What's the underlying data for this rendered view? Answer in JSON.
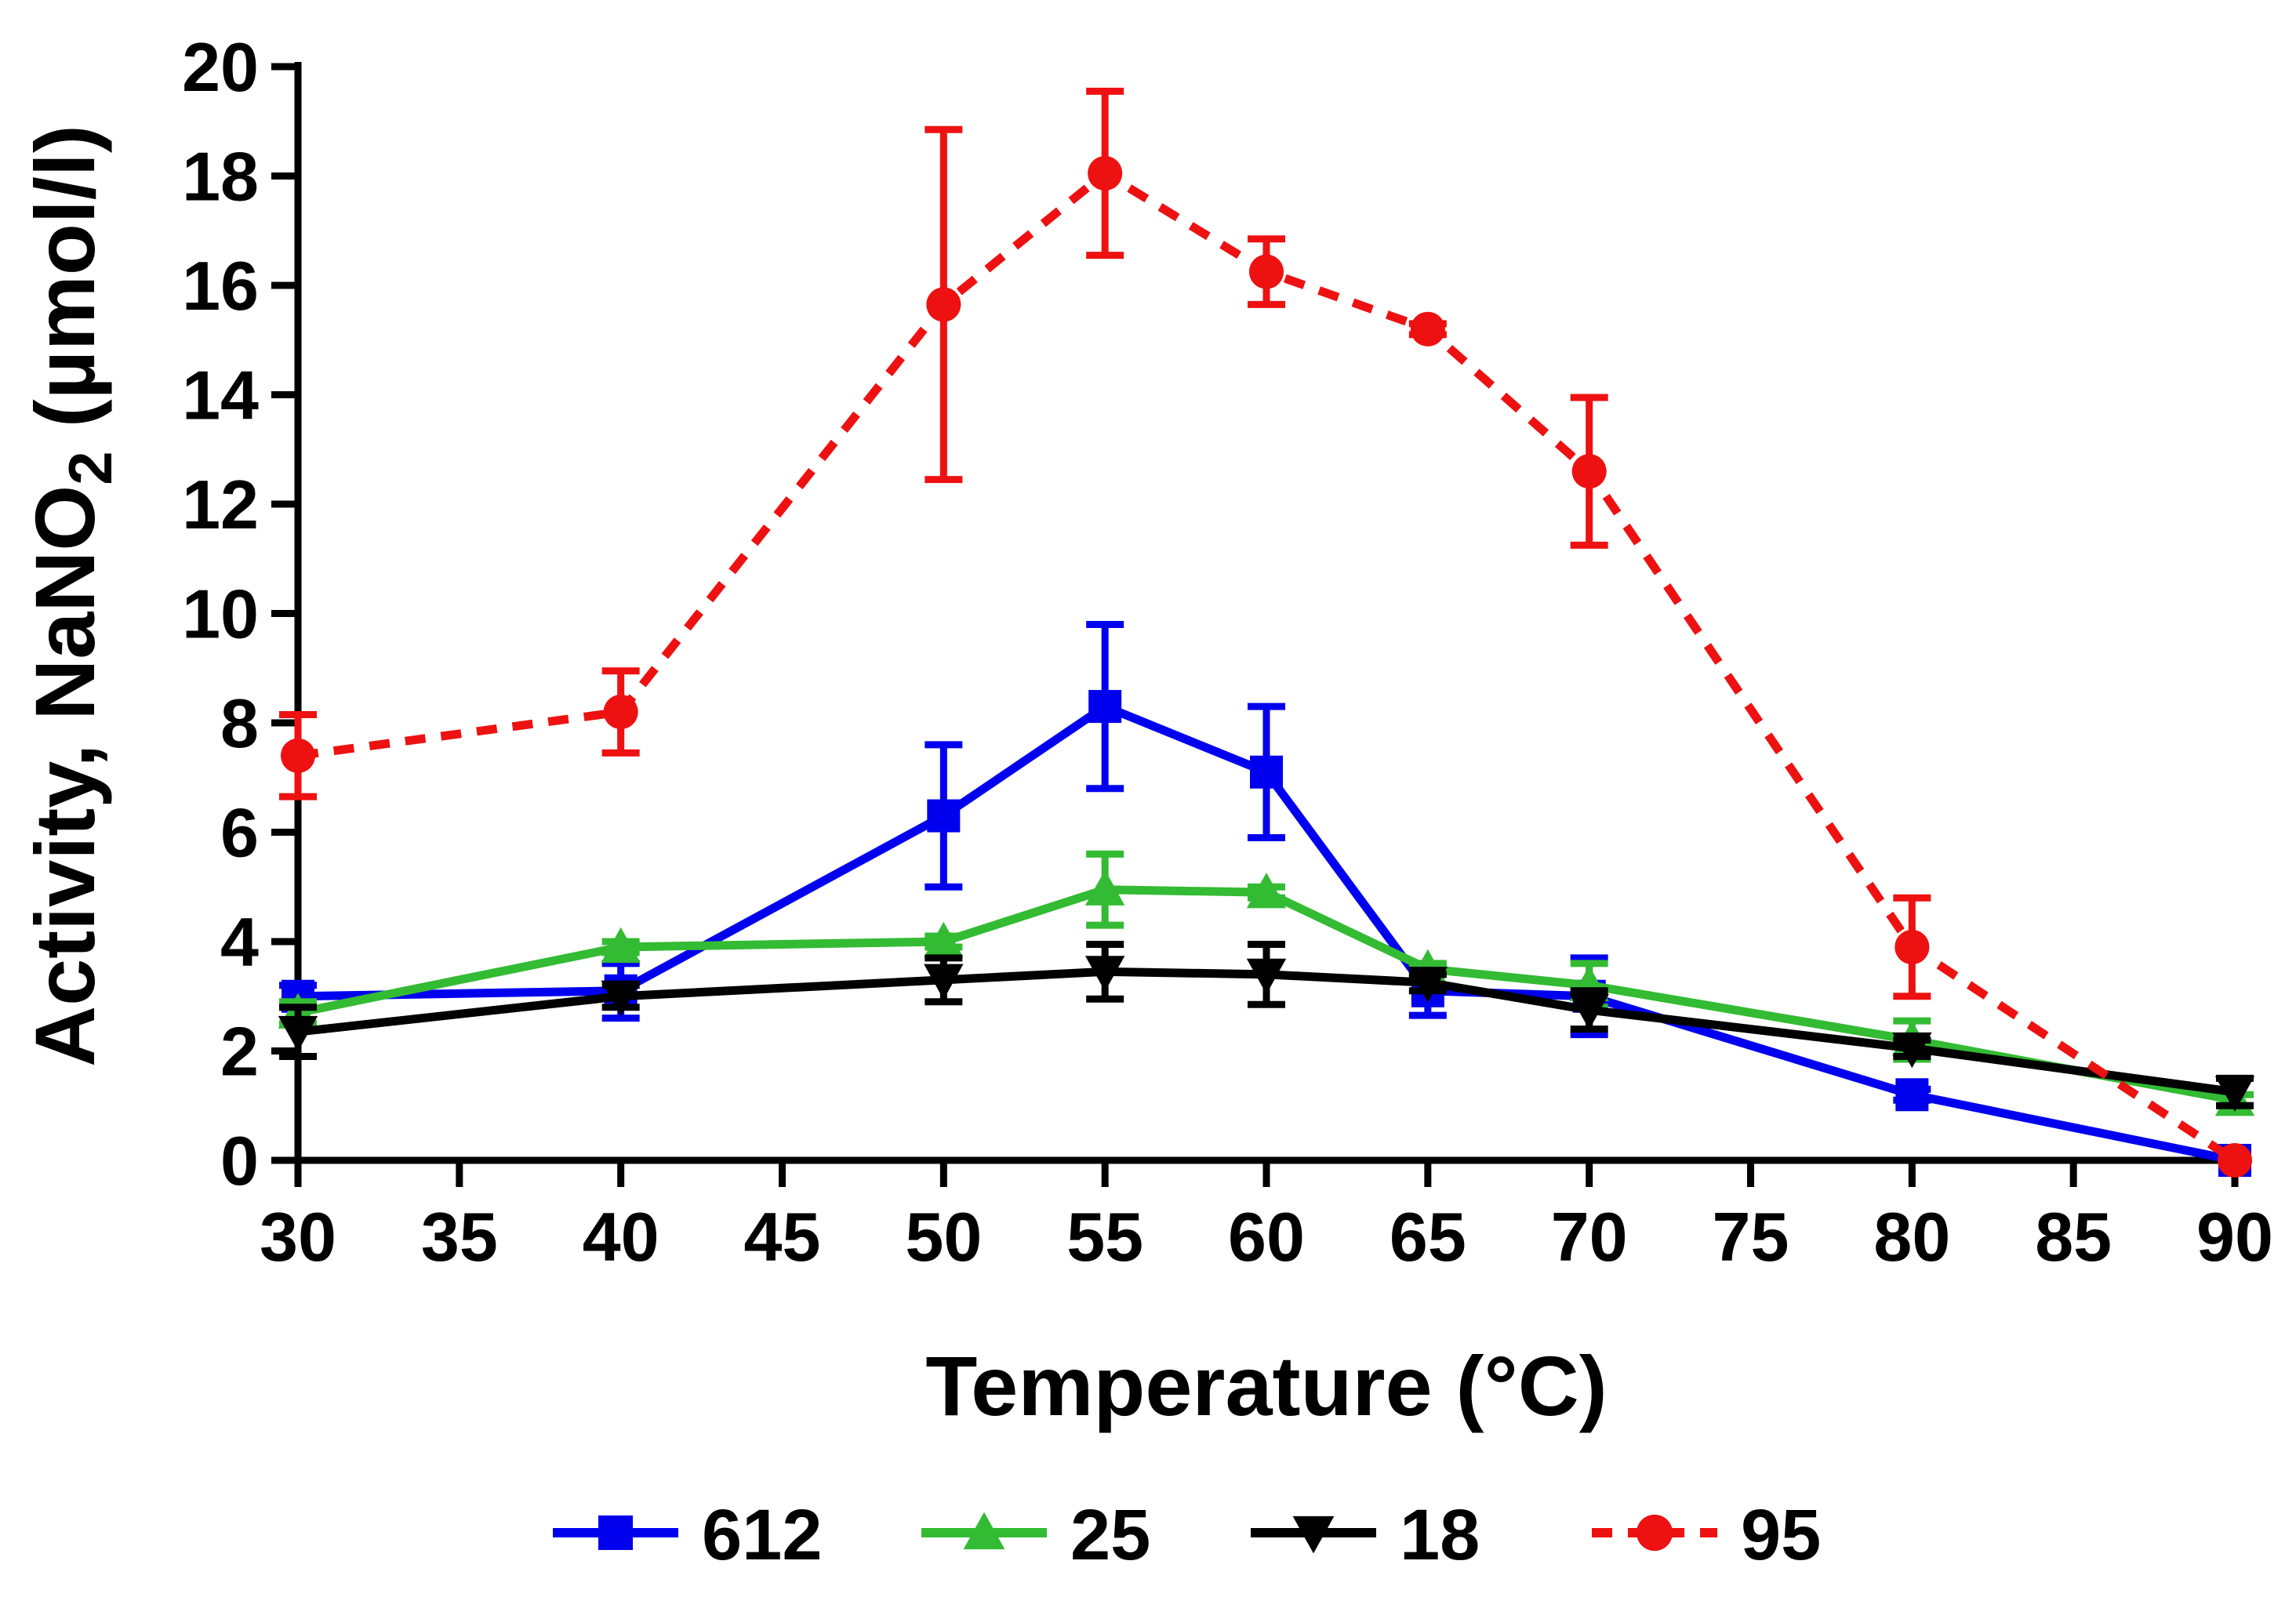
{
  "chart_data": {
    "type": "line",
    "xlabel": "Temperature (°C)",
    "ylabel_prefix": "Activity, NaNO",
    "ylabel_subscript": "2",
    "ylabel_suffix": " (µmol/l)",
    "xlim": [
      30,
      90
    ],
    "ylim": [
      0,
      20
    ],
    "xticks": [
      30,
      35,
      40,
      45,
      50,
      55,
      60,
      65,
      70,
      75,
      80,
      85,
      90
    ],
    "yticks": [
      0,
      2,
      4,
      6,
      8,
      10,
      12,
      14,
      16,
      18,
      20
    ],
    "grid": false,
    "legend_position": "bottom",
    "series": [
      {
        "name": "612",
        "color": "#0000ee",
        "marker": "square",
        "dashed": false,
        "x": [
          30,
          40,
          50,
          55,
          60,
          65,
          70,
          80,
          90
        ],
        "y": [
          3.0,
          3.1,
          6.3,
          8.3,
          7.1,
          3.1,
          3.0,
          1.2,
          0.0
        ],
        "err": [
          0.2,
          0.5,
          1.3,
          1.5,
          1.2,
          0.45,
          0.7,
          0.1,
          0.05
        ]
      },
      {
        "name": "25",
        "color": "#33bb33",
        "marker": "triangle-up",
        "dashed": false,
        "x": [
          30,
          40,
          50,
          55,
          60,
          65,
          70,
          80,
          90
        ],
        "y": [
          2.7,
          3.9,
          4.0,
          4.95,
          4.9,
          3.5,
          3.2,
          2.2,
          1.1
        ],
        "err": [
          0.2,
          0.1,
          0.1,
          0.65,
          0.1,
          0.1,
          0.4,
          0.35,
          0.1
        ]
      },
      {
        "name": "18",
        "color": "#000000",
        "marker": "triangle-down",
        "dashed": false,
        "x": [
          30,
          40,
          50,
          55,
          60,
          65,
          70,
          80,
          90
        ],
        "y": [
          2.35,
          3.0,
          3.3,
          3.45,
          3.4,
          3.25,
          2.75,
          2.05,
          1.25
        ],
        "err": [
          0.45,
          0.2,
          0.4,
          0.5,
          0.55,
          0.15,
          0.35,
          0.15,
          0.25
        ]
      },
      {
        "name": "95",
        "color": "#ee1111",
        "marker": "circle",
        "dashed": true,
        "x": [
          30,
          40,
          50,
          55,
          60,
          65,
          70,
          80,
          90
        ],
        "y": [
          7.4,
          8.2,
          15.65,
          18.05,
          16.25,
          15.2,
          12.6,
          3.9,
          0.0
        ],
        "err": [
          0.75,
          0.75,
          3.2,
          1.5,
          0.6,
          0.1,
          1.35,
          0.9,
          0.05
        ]
      }
    ]
  }
}
